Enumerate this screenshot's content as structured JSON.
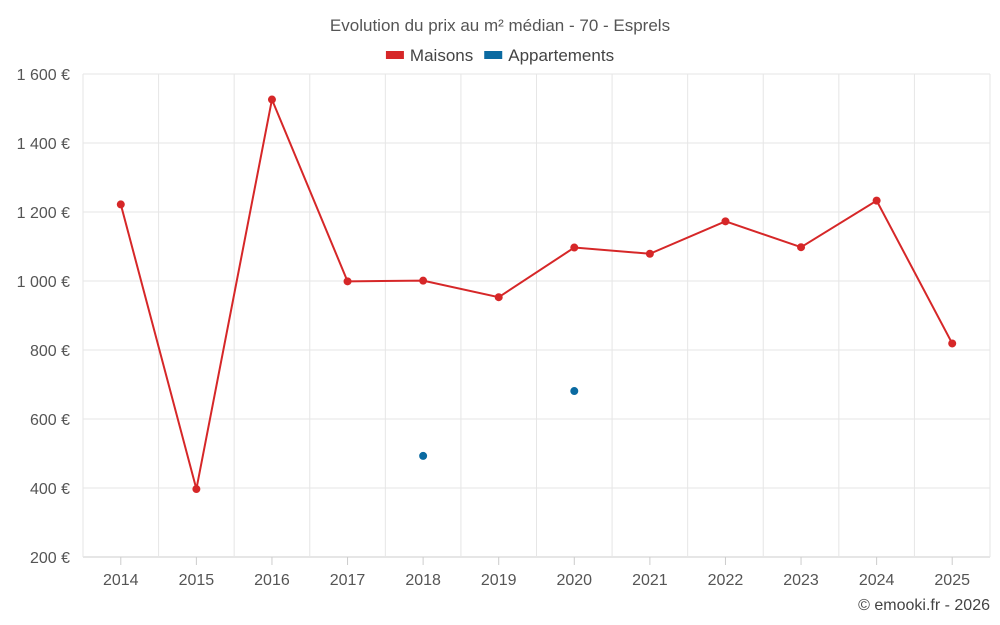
{
  "chart_data": {
    "type": "line",
    "title": "Evolution du prix au m² médian - 70 - Esprels",
    "categories": [
      "2014",
      "2015",
      "2016",
      "2017",
      "2018",
      "2019",
      "2020",
      "2021",
      "2022",
      "2023",
      "2024",
      "2025"
    ],
    "series": [
      {
        "name": "Maisons",
        "color": "#d62728",
        "values": [
          1222,
          397,
          1526,
          999,
          1001,
          953,
          1097,
          1079,
          1173,
          1098,
          1233,
          819
        ]
      },
      {
        "name": "Appartements",
        "color": "#0a6aa1",
        "values": [
          null,
          null,
          null,
          null,
          493,
          null,
          681,
          null,
          null,
          null,
          null,
          null
        ]
      }
    ],
    "ylim": [
      200,
      1600
    ],
    "yticks": [
      200,
      400,
      600,
      800,
      1000,
      1200,
      1400,
      1600
    ],
    "ytick_labels": [
      "200 €",
      "400 €",
      "600 €",
      "800 €",
      "1 000 €",
      "1 200 €",
      "1 400 €",
      "1 600 €"
    ],
    "legend_position": "top-center",
    "grid": true
  },
  "credit": "© emooki.fr - 2026"
}
